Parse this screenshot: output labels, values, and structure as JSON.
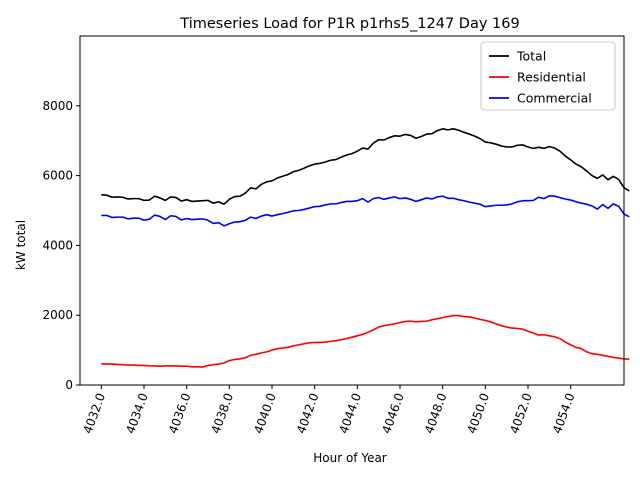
{
  "chart_data": {
    "type": "line",
    "title": "Timeseries Load for P1R p1rhs5_1247  Day 169",
    "xlabel": "Hour of Year",
    "ylabel": "kW total",
    "xlim": [
      4031.0,
      4056.5
    ],
    "ylim": [
      0,
      10000
    ],
    "xticks": [
      4032,
      4034,
      4036,
      4038,
      4040,
      4042,
      4044,
      4046,
      4048,
      4050,
      4052,
      4054
    ],
    "xtick_labels": [
      "4032.0",
      "4034.0",
      "4036.0",
      "4038.0",
      "4040.0",
      "4042.0",
      "4044.0",
      "4046.0",
      "4048.0",
      "4050.0",
      "4052.0",
      "4054.0"
    ],
    "yticks": [
      0,
      2000,
      4000,
      6000,
      8000
    ],
    "ytick_labels": [
      "0",
      "2000",
      "4000",
      "6000",
      "8000"
    ],
    "legend_position": "top-right",
    "x_start": 4032.0,
    "x_step": 0.25,
    "series": [
      {
        "name": "Total",
        "color": "#000000",
        "values": [
          5450,
          5440,
          5380,
          5390,
          5380,
          5330,
          5340,
          5340,
          5290,
          5300,
          5410,
          5360,
          5290,
          5390,
          5370,
          5270,
          5310,
          5260,
          5270,
          5280,
          5290,
          5210,
          5250,
          5180,
          5320,
          5400,
          5410,
          5500,
          5650,
          5620,
          5750,
          5820,
          5850,
          5930,
          5980,
          6030,
          6110,
          6150,
          6210,
          6280,
          6330,
          6350,
          6390,
          6440,
          6460,
          6530,
          6590,
          6630,
          6700,
          6790,
          6760,
          6930,
          7030,
          7020,
          7090,
          7140,
          7130,
          7180,
          7150,
          7070,
          7120,
          7190,
          7200,
          7290,
          7340,
          7310,
          7340,
          7300,
          7240,
          7190,
          7130,
          7060,
          6960,
          6940,
          6900,
          6850,
          6820,
          6820,
          6870,
          6880,
          6820,
          6780,
          6810,
          6780,
          6830,
          6790,
          6700,
          6560,
          6450,
          6330,
          6250,
          6130,
          6000,
          5920,
          6020,
          5880,
          5980,
          5890,
          5650,
          5560
        ]
      },
      {
        "name": "Residential",
        "color": "#ff0000",
        "values": [
          610,
          600,
          600,
          590,
          580,
          570,
          570,
          560,
          560,
          550,
          545,
          540,
          545,
          550,
          545,
          540,
          540,
          520,
          520,
          515,
          560,
          580,
          600,
          630,
          700,
          730,
          750,
          780,
          850,
          880,
          920,
          950,
          1000,
          1040,
          1060,
          1080,
          1120,
          1150,
          1180,
          1210,
          1220,
          1220,
          1230,
          1250,
          1270,
          1300,
          1330,
          1370,
          1410,
          1450,
          1510,
          1580,
          1660,
          1700,
          1730,
          1750,
          1790,
          1820,
          1830,
          1810,
          1820,
          1830,
          1870,
          1900,
          1930,
          1960,
          1990,
          1990,
          1960,
          1950,
          1920,
          1880,
          1850,
          1810,
          1750,
          1700,
          1660,
          1630,
          1620,
          1600,
          1540,
          1490,
          1430,
          1440,
          1410,
          1380,
          1330,
          1230,
          1150,
          1080,
          1040,
          950,
          900,
          880,
          850,
          820,
          790,
          770,
          750,
          740
        ]
      },
      {
        "name": "Commercial",
        "color": "#0000ff",
        "values": [
          4860,
          4860,
          4800,
          4810,
          4810,
          4760,
          4780,
          4780,
          4720,
          4750,
          4870,
          4830,
          4740,
          4850,
          4830,
          4730,
          4770,
          4740,
          4750,
          4760,
          4720,
          4630,
          4650,
          4560,
          4620,
          4670,
          4680,
          4720,
          4810,
          4770,
          4840,
          4880,
          4840,
          4880,
          4910,
          4950,
          4990,
          5000,
          5030,
          5070,
          5110,
          5120,
          5160,
          5190,
          5190,
          5230,
          5260,
          5260,
          5280,
          5340,
          5240,
          5340,
          5370,
          5320,
          5360,
          5390,
          5340,
          5360,
          5320,
          5260,
          5310,
          5360,
          5330,
          5390,
          5410,
          5350,
          5350,
          5310,
          5280,
          5240,
          5210,
          5180,
          5110,
          5130,
          5150,
          5150,
          5160,
          5190,
          5250,
          5280,
          5280,
          5290,
          5380,
          5340,
          5420,
          5410,
          5370,
          5330,
          5300,
          5250,
          5210,
          5180,
          5130,
          5040,
          5170,
          5060,
          5190,
          5120,
          4900,
          4820
        ]
      }
    ]
  }
}
